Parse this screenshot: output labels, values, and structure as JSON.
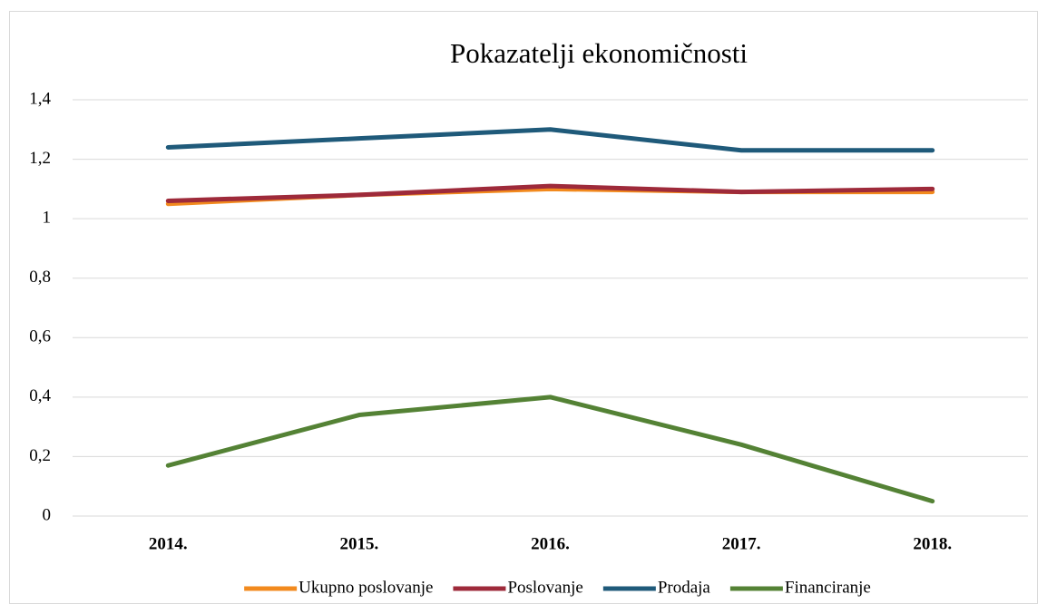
{
  "chart_data": {
    "type": "line",
    "title": "Pokazatelji ekonomičnosti",
    "categories": [
      "2014.",
      "2015.",
      "2016.",
      "2017.",
      "2018."
    ],
    "series": [
      {
        "name": "Ukupno poslovanje",
        "color": "#f28a1e",
        "values": [
          1.05,
          1.08,
          1.1,
          1.09,
          1.09
        ]
      },
      {
        "name": "Poslovanje",
        "color": "#9e2a3a",
        "values": [
          1.06,
          1.08,
          1.11,
          1.09,
          1.1
        ]
      },
      {
        "name": "Prodaja",
        "color": "#1f5a7a",
        "values": [
          1.24,
          1.27,
          1.3,
          1.23,
          1.23
        ]
      },
      {
        "name": "Financiranje",
        "color": "#548235",
        "values": [
          0.17,
          0.34,
          0.4,
          0.24,
          0.05
        ]
      }
    ],
    "ylim": [
      0,
      1.4
    ],
    "yticks": [
      0,
      {
        "value": 0.2,
        "label": "0,2"
      },
      {
        "value": 0.4,
        "label": "0,4"
      },
      {
        "value": 0.6,
        "label": "0,6"
      },
      {
        "value": 0.8,
        "label": "0,8"
      },
      1,
      {
        "value": 1.2,
        "label": "1,2"
      },
      {
        "value": 1.4,
        "label": "1,4"
      }
    ],
    "grid": true,
    "legend": "bottom"
  }
}
